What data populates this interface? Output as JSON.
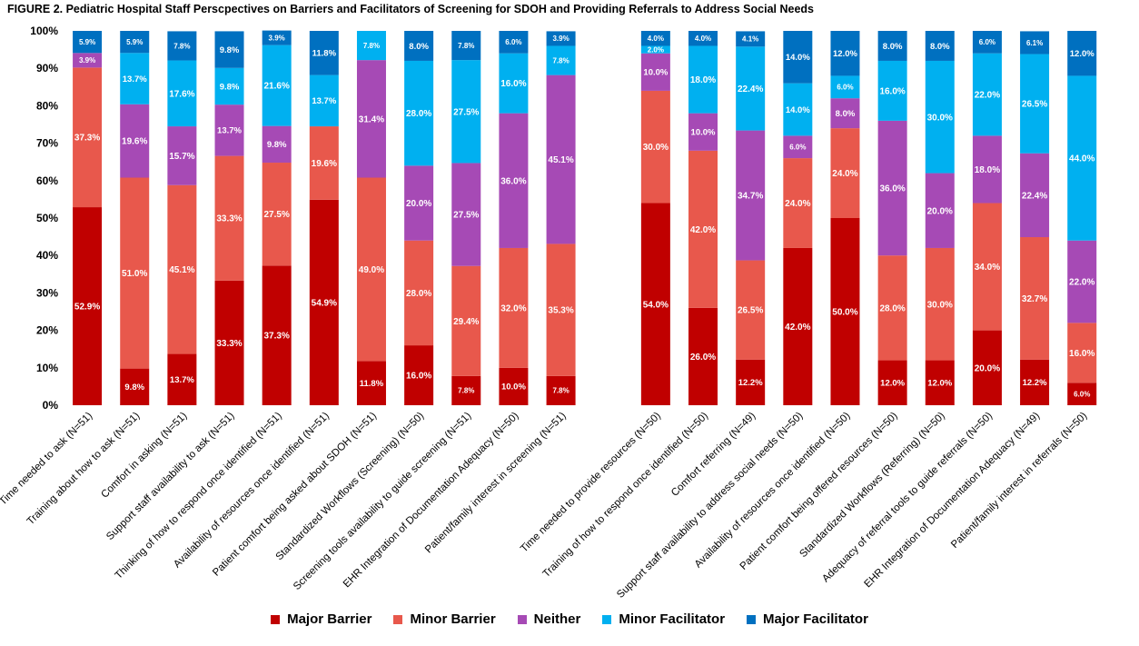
{
  "title": "FIGURE 2. Pediatric Hospital Staff Perscpectives on Barriers and Facilitators of Screening for SDOH and Providing Referrals to Address Social Needs",
  "colors": {
    "Major Barrier": "#c00000",
    "Minor Barrier": "#e8584c",
    "Neither": "#a64ab5",
    "Minor Facilitator": "#00b0f0",
    "Major Facilitator": "#0070c0"
  },
  "chart_data": {
    "type": "bar",
    "stacked": true,
    "ylim": [
      0,
      100
    ],
    "yticks": [
      "0%",
      "10%",
      "20%",
      "30%",
      "40%",
      "50%",
      "60%",
      "70%",
      "80%",
      "90%",
      "100%"
    ],
    "legend_position": "bottom",
    "grid": false,
    "categories": [
      "Time needed to ask (N=51)",
      "Training about how to ask (N=51)",
      "Comfort in asking (N=51)",
      "Support staff availability to ask (N=51)",
      "Thinking of how to respond once identified (N=51)",
      "Availability of resources once identified (N=51)",
      "Patient comfort being asked about SDOH (N=51)",
      "Standardized Workflows (Screening) (N=50)",
      "Screening tools availability to guide screening (N=51)",
      "EHR Integration of Documentation Adequacy (N=50)",
      "Patient/family interest in screening  (N=51)",
      "",
      "Time needed to provide resources (N=50)",
      "Training of how to respond once identified (N=50)",
      "Comfort referring  (N=49)",
      "Support staff availability to address social needs (N=50)",
      "Availability of resources once identified (N=50)",
      "Patient comfort being offered resources  (N=50)",
      "Standardized Workflows (Referring) (N=50)",
      "Adequacy of referral tools to guide referrals (N=50)",
      "EHR Integration of Documentation Adequacy (N=49)",
      "Patient/family interest in referrals (N=50)"
    ],
    "series": [
      {
        "name": "Major Barrier",
        "values": [
          52.9,
          9.8,
          13.7,
          33.3,
          37.3,
          54.9,
          11.8,
          16.0,
          7.8,
          10.0,
          7.8,
          null,
          54.0,
          26.0,
          12.2,
          42.0,
          50.0,
          12.0,
          12.0,
          20.0,
          12.2,
          6.0
        ],
        "labels": [
          "52.9%",
          "9.8%",
          "13.7%",
          "33.3%",
          "37.3%",
          "54.9%",
          "11.8%",
          "16.0%",
          "7.8%",
          "10.0%",
          "7.8%",
          "",
          "54.0%",
          "26.0%",
          "12.2%",
          "42.0%",
          "50.0%",
          "12.0%",
          "12.0%",
          "20.0%",
          "12.2%",
          "6.0%"
        ]
      },
      {
        "name": "Minor Barrier",
        "values": [
          37.3,
          51.0,
          45.1,
          33.3,
          27.5,
          19.6,
          49.0,
          28.0,
          29.4,
          32.0,
          35.3,
          null,
          30.0,
          42.0,
          26.5,
          24.0,
          24.0,
          28.0,
          30.0,
          34.0,
          32.7,
          16.0
        ],
        "labels": [
          "37.3%",
          "51.0%",
          "45.1%",
          "33.3%",
          "27.5%",
          "19.6%",
          "49.0%",
          "28.0%",
          "29.4%",
          "32.0%",
          "35.3%",
          "",
          "30.0%",
          "42.0%",
          "26.5%",
          "24.0%",
          "24.0%",
          "28.0%",
          "30.0%",
          "34.0%",
          "32.7%",
          "16.0%"
        ]
      },
      {
        "name": "Neither",
        "values": [
          3.9,
          19.6,
          15.7,
          13.7,
          9.8,
          0,
          31.4,
          20.0,
          27.5,
          36.0,
          45.1,
          null,
          10.0,
          10.0,
          34.7,
          6.0,
          8.0,
          36.0,
          20.0,
          18.0,
          22.4,
          22.0
        ],
        "labels": [
          "3.9%",
          "19.6%",
          "15.7%",
          "13.7%",
          "9.8%",
          "",
          "31.4%",
          "20.0%",
          "27.5%",
          "36.0%",
          "45.1%",
          "",
          "10.0%",
          "10.0%",
          "34.7%",
          "6.0%",
          "8.0%",
          "36.0%",
          "20.0%",
          "18.0%",
          "22.4%",
          "22.0%"
        ]
      },
      {
        "name": "Minor Facilitator",
        "values": [
          0,
          13.7,
          17.6,
          9.8,
          21.6,
          13.7,
          7.8,
          28.0,
          27.5,
          16.0,
          7.8,
          null,
          2.0,
          18.0,
          22.4,
          14.0,
          6.0,
          16.0,
          30.0,
          22.0,
          26.5,
          44.0
        ],
        "labels": [
          "",
          "13.7%",
          "17.6%",
          "9.8%",
          "21.6%",
          "13.7%",
          "7.8%",
          "28.0%",
          "27.5%",
          "16.0%",
          "7.8%",
          "",
          "2.0%",
          "18.0%",
          "22.4%",
          "14.0%",
          "6.0%",
          "16.0%",
          "30.0%",
          "22.0%",
          "26.5%",
          "44.0%"
        ]
      },
      {
        "name": "Major Facilitator",
        "values": [
          5.9,
          5.9,
          7.8,
          9.8,
          3.9,
          11.8,
          0,
          8.0,
          7.8,
          6.0,
          3.9,
          null,
          4.0,
          4.0,
          4.1,
          14.0,
          12.0,
          8.0,
          8.0,
          6.0,
          6.1,
          12.0
        ],
        "labels": [
          "5.9%",
          "5.9%",
          "7.8%",
          "9.8%",
          "3.9%",
          "11.8%",
          "",
          "8.0%",
          "7.8%",
          "6.0%",
          "3.9%",
          "",
          "4.0%",
          "4.0%",
          "4.1%",
          "14.0%",
          "12.0%",
          "8.0%",
          "8.0%",
          "6.0%",
          "6.1%",
          "12.0%"
        ]
      }
    ],
    "legend": [
      "Major Barrier",
      "Minor Barrier",
      "Neither",
      "Minor Facilitator",
      "Major Facilitator"
    ]
  }
}
